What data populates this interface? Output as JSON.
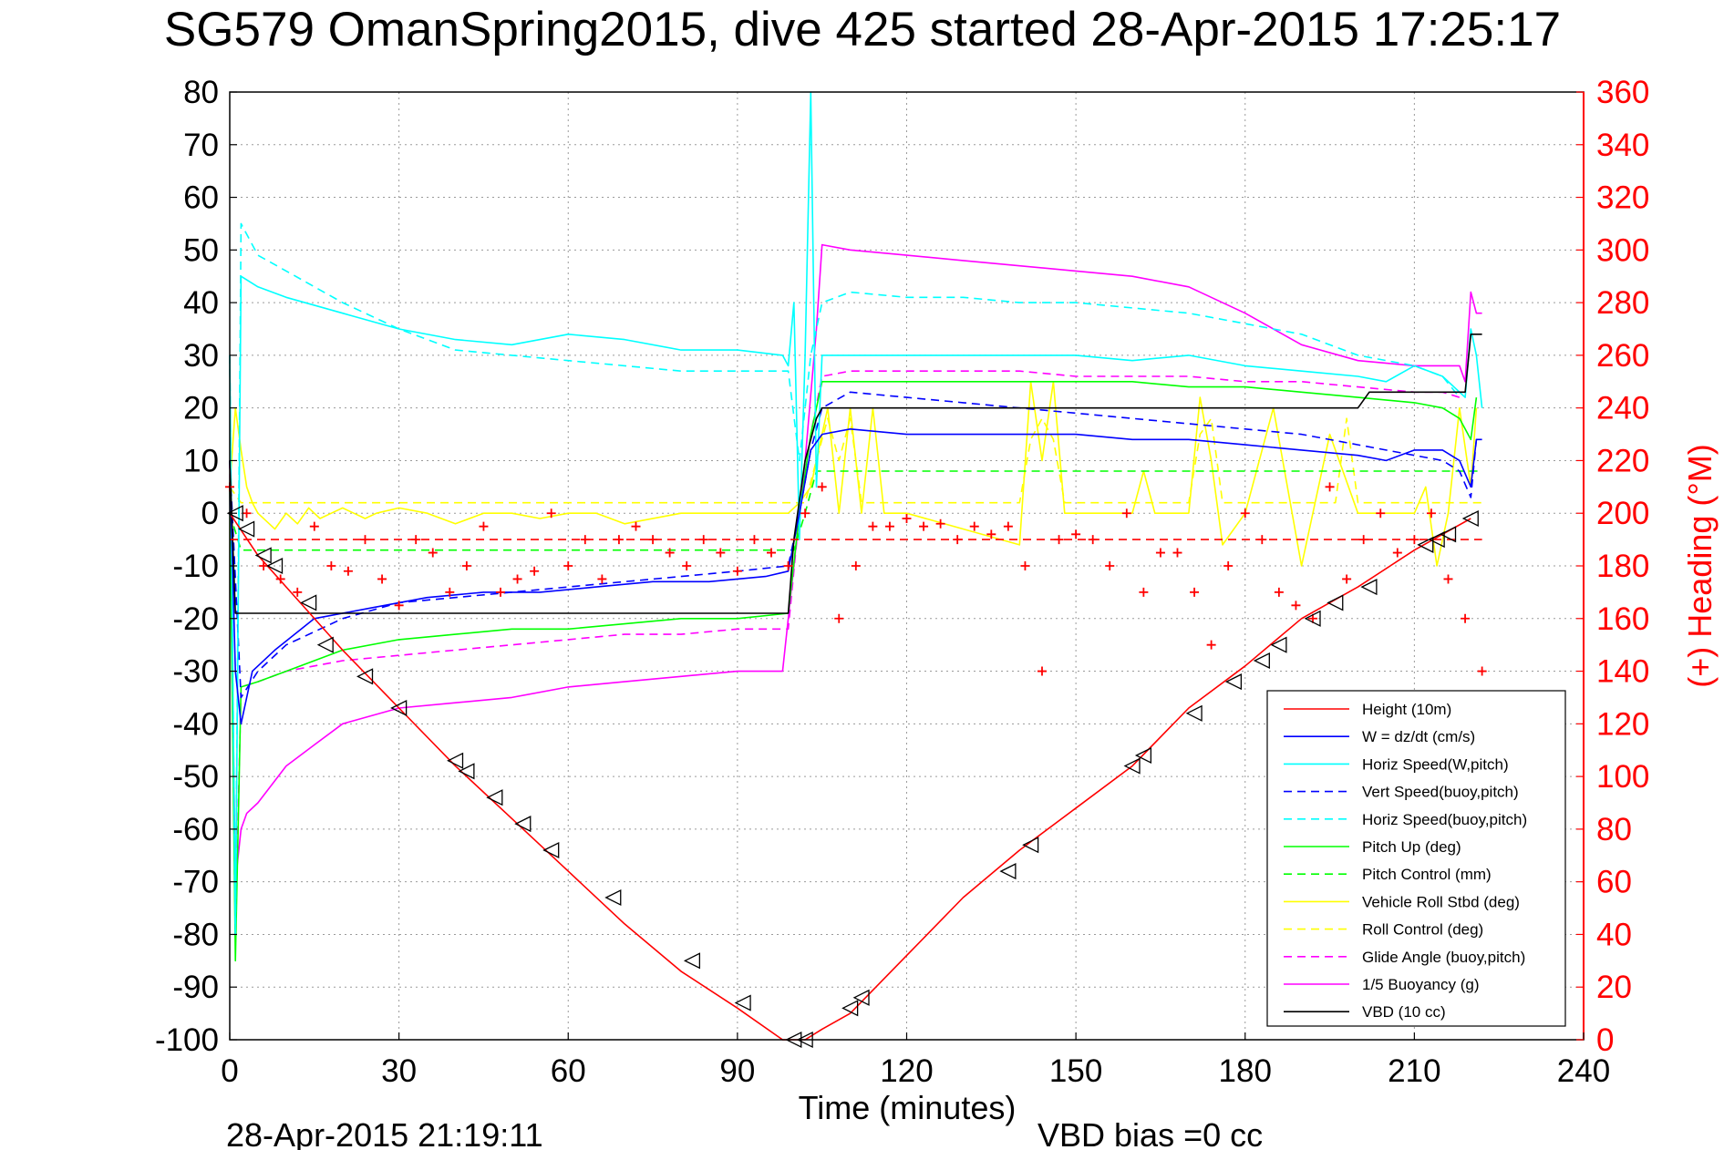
{
  "title": "SG579 OmanSpring2015, dive 425 started 28-Apr-2015 17:25:17",
  "footer_left": "28-Apr-2015 21:19:11",
  "footer_right": "VBD bias =0 cc",
  "colors": {
    "height": "#ff0000",
    "w": "#0000ff",
    "horiz_speed": "#00ffff",
    "vert_speed_buoy": "#0000ff",
    "horiz_speed_buoy": "#00ffff",
    "pitch_up": "#00ff00",
    "pitch_control": "#00ff00",
    "roll": "#ffff00",
    "roll_control": "#ffff00",
    "glide_angle": "#ff00ff",
    "buoyancy": "#ff00ff",
    "vbd": "#000000",
    "heading": "#ff0000",
    "right_axis": "#ff0000"
  },
  "chart_data": {
    "type": "line",
    "xlabel": "Time (minutes)",
    "ylabel": "",
    "y2label": "(+) Heading (°M)",
    "xlim": [
      0,
      240
    ],
    "ylim": [
      -100,
      80
    ],
    "y2lim": [
      0,
      360
    ],
    "xticks": [
      "0",
      "30",
      "60",
      "90",
      "120",
      "150",
      "180",
      "210",
      "240"
    ],
    "yticks": [
      "80",
      "70",
      "60",
      "50",
      "40",
      "30",
      "20",
      "10",
      "0",
      "-10",
      "-20",
      "-30",
      "-40",
      "-50",
      "-60",
      "-70",
      "-80",
      "-90",
      "-100"
    ],
    "y2ticks": [
      "360",
      "340",
      "320",
      "300",
      "280",
      "260",
      "240",
      "220",
      "200",
      "180",
      "160",
      "140",
      "120",
      "100",
      "80",
      "60",
      "40",
      "20",
      "0"
    ],
    "grid": true,
    "legend_position": "bottom-right",
    "series": [
      {
        "name": "Height (10m)",
        "key": "height",
        "style": "solid",
        "x": [
          0,
          5,
          10,
          20,
          30,
          40,
          50,
          60,
          70,
          80,
          90,
          98,
          100,
          102,
          105,
          110,
          120,
          130,
          140,
          150,
          160,
          170,
          180,
          190,
          200,
          210,
          215,
          220
        ],
        "y": [
          0,
          -8,
          -14,
          -26,
          -37,
          -48,
          -58,
          -68,
          -78,
          -87,
          -94,
          -100,
          -100,
          -100,
          -98,
          -95,
          -84,
          -73,
          -64,
          -56,
          -48,
          -37,
          -29,
          -20,
          -14,
          -7,
          -4,
          -1
        ]
      },
      {
        "name": "W = dz/dt (cm/s)",
        "key": "w",
        "style": "solid",
        "x": [
          0,
          1,
          2,
          4,
          8,
          15,
          25,
          35,
          45,
          55,
          65,
          75,
          85,
          95,
          99,
          101,
          103,
          105,
          110,
          120,
          130,
          140,
          150,
          160,
          170,
          180,
          190,
          200,
          205,
          210,
          215,
          218,
          220,
          221,
          222
        ],
        "y": [
          10,
          -30,
          -40,
          -30,
          -26,
          -20,
          -18,
          -16,
          -15,
          -15,
          -14,
          -13,
          -13,
          -12,
          -11,
          0,
          12,
          15,
          16,
          15,
          15,
          15,
          15,
          14,
          14,
          13,
          12,
          11,
          10,
          12,
          12,
          10,
          5,
          14,
          14
        ]
      },
      {
        "name": "Horiz Speed(W,pitch)",
        "key": "horiz_speed",
        "style": "solid",
        "x": [
          0,
          1,
          2,
          5,
          10,
          20,
          30,
          40,
          50,
          60,
          70,
          80,
          90,
          98,
          99,
          100,
          101,
          102,
          103,
          104,
          105,
          110,
          120,
          130,
          140,
          150,
          160,
          170,
          180,
          190,
          200,
          205,
          210,
          215,
          219,
          220,
          221,
          222
        ],
        "y": [
          30,
          -80,
          45,
          43,
          41,
          38,
          35,
          33,
          32,
          34,
          33,
          31,
          31,
          30,
          28,
          40,
          -5,
          30,
          80,
          5,
          30,
          30,
          30,
          30,
          30,
          30,
          29,
          30,
          28,
          27,
          26,
          25,
          28,
          26,
          22,
          35,
          30,
          20
        ]
      },
      {
        "name": "Vert Speed(buoy,pitch)",
        "key": "vert_speed_buoy",
        "style": "dashed",
        "x": [
          0,
          2,
          5,
          10,
          20,
          30,
          40,
          50,
          60,
          70,
          80,
          90,
          99,
          101,
          103,
          105,
          110,
          120,
          130,
          140,
          150,
          160,
          170,
          180,
          190,
          200,
          210,
          215,
          218,
          220,
          221
        ],
        "y": [
          10,
          -35,
          -30,
          -25,
          -20,
          -17,
          -16,
          -15,
          -14,
          -13,
          -12,
          -11,
          -10,
          0,
          12,
          20,
          23,
          22,
          21,
          20,
          19,
          18,
          17,
          16,
          15,
          13,
          11,
          10,
          8,
          3,
          14
        ]
      },
      {
        "name": "Horiz Speed(buoy,pitch)",
        "key": "horiz_speed_buoy",
        "style": "dashed",
        "x": [
          0,
          1,
          2,
          5,
          10,
          20,
          30,
          40,
          50,
          60,
          70,
          80,
          90,
          99,
          101,
          103,
          105,
          110,
          120,
          130,
          140,
          150,
          160,
          170,
          180,
          190,
          200,
          210,
          215,
          218
        ],
        "y": [
          30,
          -80,
          55,
          49,
          46,
          40,
          35,
          31,
          30,
          29,
          28,
          27,
          27,
          27,
          10,
          30,
          40,
          42,
          41,
          41,
          40,
          40,
          39,
          38,
          36,
          34,
          30,
          28,
          26,
          22
        ]
      },
      {
        "name": "Pitch Up (deg)",
        "key": "pitch_up",
        "style": "solid",
        "x": [
          0,
          1,
          2,
          5,
          10,
          20,
          30,
          40,
          50,
          60,
          70,
          80,
          90,
          99,
          101,
          103,
          105,
          110,
          120,
          130,
          140,
          150,
          160,
          170,
          180,
          190,
          200,
          210,
          215,
          218,
          220,
          221
        ],
        "y": [
          5,
          -85,
          -33,
          -32,
          -30,
          -26,
          -24,
          -23,
          -22,
          -22,
          -21,
          -20,
          -20,
          -19,
          0,
          15,
          25,
          25,
          25,
          25,
          25,
          25,
          25,
          24,
          24,
          23,
          22,
          21,
          20,
          18,
          14,
          22
        ]
      },
      {
        "name": "Pitch Control (mm)",
        "key": "pitch_control",
        "style": "dashed",
        "x": [
          0,
          2,
          100,
          102,
          104,
          222
        ],
        "y": [
          0,
          -7,
          -7,
          0,
          8,
          8
        ]
      },
      {
        "name": "Vehicle Roll Stbd (deg)",
        "key": "roll",
        "style": "solid",
        "x": [
          0,
          1,
          2,
          3,
          4,
          5,
          8,
          10,
          12,
          14,
          16,
          18,
          20,
          22,
          24,
          26,
          30,
          35,
          40,
          45,
          50,
          55,
          60,
          65,
          70,
          80,
          90,
          99,
          101,
          103,
          104,
          106,
          108,
          110,
          112,
          114,
          116,
          118,
          120,
          140,
          142,
          144,
          146,
          148,
          160,
          162,
          164,
          170,
          172,
          174,
          176,
          180,
          185,
          190,
          195,
          200,
          205,
          210,
          212,
          214,
          216,
          218,
          220,
          221
        ],
        "y": [
          5,
          20,
          12,
          5,
          2,
          0,
          -3,
          0,
          -2,
          1,
          -1,
          0,
          1,
          0,
          -1,
          0,
          1,
          0,
          -2,
          0,
          0,
          -1,
          0,
          0,
          -2,
          0,
          0,
          0,
          2,
          5,
          10,
          20,
          0,
          20,
          0,
          20,
          0,
          0,
          0,
          -6,
          25,
          10,
          25,
          0,
          0,
          8,
          0,
          0,
          22,
          10,
          -6,
          0,
          20,
          -10,
          15,
          0,
          0,
          0,
          5,
          -10,
          0,
          20,
          5,
          20
        ]
      },
      {
        "name": "Roll Control (deg)",
        "key": "roll_control",
        "style": "dashed",
        "x": [
          0,
          2,
          100,
          102,
          104,
          106,
          108,
          110,
          112,
          120,
          140,
          142,
          144,
          146,
          148,
          170,
          172,
          174,
          176,
          178,
          196,
          198,
          200,
          222
        ],
        "y": [
          5,
          2,
          2,
          2,
          10,
          18,
          10,
          18,
          2,
          2,
          2,
          14,
          18,
          14,
          2,
          2,
          15,
          18,
          2,
          2,
          2,
          18,
          2,
          2
        ]
      },
      {
        "name": "Glide Angle (buoy,pitch)",
        "key": "glide_angle",
        "style": "dashed",
        "x": [
          0,
          1,
          2,
          5,
          10,
          20,
          30,
          40,
          50,
          60,
          70,
          80,
          90,
          99,
          101,
          103,
          105,
          110,
          120,
          130,
          140,
          150,
          160,
          170,
          180,
          190,
          200,
          210,
          215,
          218
        ],
        "y": [
          10,
          -80,
          -33,
          -32,
          -30,
          -28,
          -27,
          -26,
          -25,
          -24,
          -23,
          -23,
          -22,
          -22,
          0,
          15,
          26,
          27,
          27,
          27,
          27,
          26,
          26,
          26,
          25,
          25,
          24,
          23,
          23,
          22
        ]
      },
      {
        "name": "1/5 Buoyancy (g)",
        "key": "buoyancy",
        "style": "solid",
        "x": [
          0,
          1,
          2,
          3,
          5,
          10,
          15,
          20,
          30,
          40,
          50,
          60,
          70,
          80,
          90,
          98,
          100,
          102,
          104,
          105,
          110,
          120,
          130,
          140,
          150,
          160,
          170,
          180,
          190,
          200,
          210,
          215,
          218,
          219,
          220,
          221,
          222
        ],
        "y": [
          5,
          -70,
          -60,
          -57,
          -55,
          -48,
          -44,
          -40,
          -37,
          -36,
          -35,
          -33,
          -32,
          -31,
          -30,
          -30,
          -10,
          10,
          35,
          51,
          50,
          49,
          48,
          47,
          46,
          45,
          43,
          38,
          32,
          29,
          28,
          28,
          28,
          25,
          42,
          38,
          38
        ]
      },
      {
        "name": "VBD (10 cc)",
        "key": "vbd",
        "style": "solid",
        "x": [
          0,
          1,
          2,
          99,
          100,
          102,
          104,
          105,
          120,
          200,
          202,
          218,
          219,
          220,
          222
        ],
        "y": [
          10,
          -19,
          -19,
          -19,
          -5,
          10,
          18,
          20,
          20,
          20,
          23,
          23,
          23,
          34,
          34
        ]
      }
    ],
    "heading": {
      "name": "Heading",
      "axis": "right",
      "marker": "+",
      "mean": 190,
      "x": [
        0,
        3,
        6,
        9,
        12,
        15,
        18,
        21,
        24,
        27,
        30,
        33,
        36,
        39,
        42,
        45,
        48,
        51,
        54,
        57,
        60,
        63,
        66,
        69,
        72,
        75,
        78,
        81,
        84,
        87,
        90,
        93,
        96,
        99,
        102,
        105,
        108,
        111,
        114,
        117,
        120,
        123,
        126,
        129,
        132,
        135,
        138,
        141,
        144,
        147,
        150,
        153,
        156,
        159,
        162,
        165,
        168,
        171,
        174,
        177,
        180,
        183,
        186,
        189,
        192,
        195,
        198,
        201,
        204,
        207,
        210,
        213,
        216,
        219,
        222
      ],
      "y": [
        210,
        200,
        180,
        175,
        170,
        195,
        180,
        178,
        190,
        175,
        165,
        190,
        185,
        170,
        180,
        195,
        170,
        175,
        178,
        200,
        180,
        190,
        175,
        190,
        195,
        190,
        185,
        180,
        190,
        185,
        178,
        190,
        185,
        180,
        200,
        210,
        160,
        180,
        195,
        195,
        198,
        195,
        196,
        190,
        195,
        192,
        195,
        180,
        140,
        190,
        192,
        190,
        180,
        200,
        170,
        185,
        185,
        170,
        150,
        180,
        200,
        190,
        170,
        165,
        160,
        210,
        175,
        190,
        200,
        185,
        190,
        200,
        175,
        160,
        140
      ]
    },
    "markers": {
      "symbol": "triangle",
      "x": [
        1,
        3,
        6,
        8,
        14,
        17,
        24,
        30,
        40,
        42,
        47,
        52,
        57,
        68,
        82,
        91,
        100,
        102,
        110,
        112,
        138,
        142,
        160,
        162,
        171,
        178,
        183,
        186,
        192,
        196,
        202,
        212,
        214,
        216,
        220
      ],
      "y": [
        0,
        -3,
        -8,
        -10,
        -17,
        -25,
        -31,
        -37,
        -47,
        -49,
        -54,
        -59,
        -64,
        -73,
        -85,
        -93,
        -100,
        -100,
        -94,
        -92,
        -68,
        -63,
        -48,
        -46,
        -38,
        -32,
        -28,
        -25,
        -20,
        -17,
        -14,
        -6,
        -5,
        -4,
        -1
      ]
    }
  }
}
